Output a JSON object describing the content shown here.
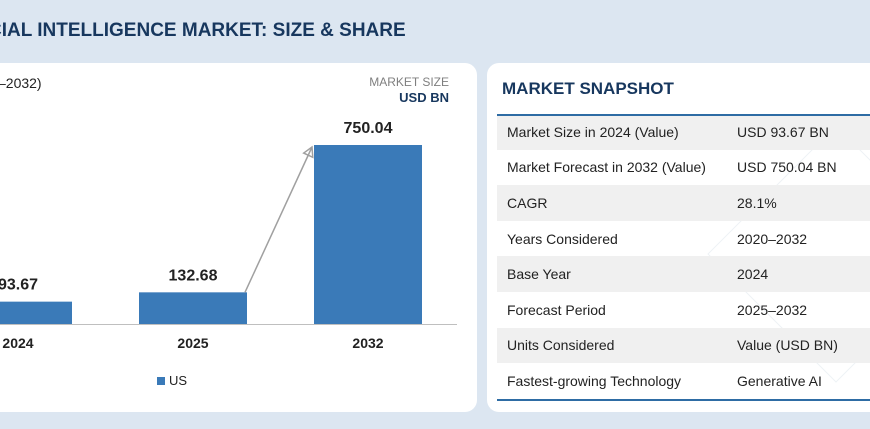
{
  "header": {
    "title": "CIAL INTELLIGENCE MARKET: SIZE & SHARE"
  },
  "chart_panel": {
    "subtitle": "–2032)",
    "unit_label_top": "MARKET SIZE",
    "unit_label_bottom": "USD BN"
  },
  "chart_data": {
    "type": "bar",
    "categories": [
      "2024",
      "2025",
      "2032"
    ],
    "series": [
      {
        "name": "US",
        "values": [
          93.67,
          132.68,
          750.04
        ]
      }
    ],
    "value_labels": [
      "93.67",
      "132.68",
      "750.04"
    ],
    "growth_arrow": {
      "from": "2025",
      "to": "2032"
    },
    "legend": {
      "position": "bottom",
      "entries": [
        "US"
      ]
    },
    "colors": {
      "bar": "#3a7ab8",
      "arrow": "#a0a0a0",
      "axis": "#bfbfbf"
    },
    "grid": false
  },
  "snapshot": {
    "title": "MARKET SNAPSHOT",
    "rows": [
      {
        "label": "Market Size in 2024 (Value)",
        "value": "USD 93.67 BN"
      },
      {
        "label": "Market Forecast in 2032 (Value)",
        "value": "USD 750.04 BN"
      },
      {
        "label": "CAGR",
        "value": "28.1%"
      },
      {
        "label": "Years Considered",
        "value": "2020–2032"
      },
      {
        "label": "Base Year",
        "value": "2024"
      },
      {
        "label": "Forecast Period",
        "value": "2025–2032"
      },
      {
        "label": "Units Considered",
        "value": "Value (USD BN)"
      },
      {
        "label": "Fastest-growing Technology",
        "value": "Generative AI"
      }
    ]
  },
  "theme": {
    "title_color": "#17375e",
    "rule_color": "#2e6ca4",
    "row_shade": "#f0f0f0"
  }
}
